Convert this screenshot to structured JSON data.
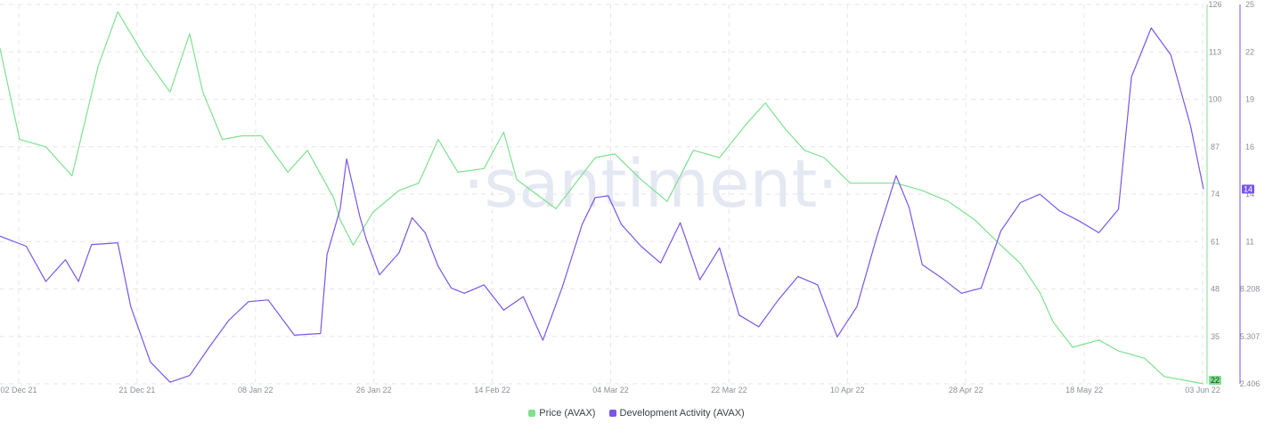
{
  "watermark": "·santiment·",
  "colors": {
    "price": "#7fe08f",
    "dev": "#7a55e6",
    "grid": "#e6e6e6",
    "axis_text": "#8a8f98"
  },
  "chart_data": {
    "type": "line",
    "x_ticks": [
      "02 Dec 21",
      "21 Dec 21",
      "08 Jan 22",
      "26 Jan 22",
      "14 Feb 22",
      "04 Mar 22",
      "22 Mar 22",
      "10 Apr 22",
      "28 Apr 22",
      "18 May 22",
      "03 Jun 22"
    ],
    "x_range": [
      "2021-12-01",
      "2022-06-03"
    ],
    "grid": true,
    "legend_position": "bottom",
    "y_axes": [
      {
        "side": "right",
        "series": "Price (AVAX)",
        "ticks": [
          "126",
          "113",
          "100",
          "87",
          "74",
          "61",
          "48",
          "35",
          "22"
        ],
        "range": [
          22,
          126
        ],
        "last_value_label": "22"
      },
      {
        "side": "right",
        "series": "Development Activity (AVAX)",
        "ticks": [
          "25",
          "22",
          "19",
          "16",
          "14",
          "11",
          "8.208",
          "5.307",
          "2.406"
        ],
        "range": [
          2.406,
          25
        ],
        "last_value_label": "14"
      }
    ],
    "series": [
      {
        "name": "Price (AVAX)",
        "x": [
          "2021-12-01",
          "2021-12-04",
          "2021-12-08",
          "2021-12-12",
          "2021-12-16",
          "2021-12-19",
          "2021-12-23",
          "2021-12-27",
          "2021-12-30",
          "2022-01-01",
          "2022-01-04",
          "2022-01-07",
          "2022-01-10",
          "2022-01-14",
          "2022-01-17",
          "2022-01-21",
          "2022-01-22",
          "2022-01-24",
          "2022-01-27",
          "2022-01-31",
          "2022-02-03",
          "2022-02-06",
          "2022-02-09",
          "2022-02-13",
          "2022-02-16",
          "2022-02-18",
          "2022-02-21",
          "2022-02-24",
          "2022-02-27",
          "2022-03-02",
          "2022-03-05",
          "2022-03-09",
          "2022-03-13",
          "2022-03-17",
          "2022-03-21",
          "2022-03-25",
          "2022-03-28",
          "2022-03-31",
          "2022-04-03",
          "2022-04-06",
          "2022-04-10",
          "2022-04-14",
          "2022-04-17",
          "2022-04-21",
          "2022-04-25",
          "2022-04-29",
          "2022-05-03",
          "2022-05-06",
          "2022-05-09",
          "2022-05-11",
          "2022-05-14",
          "2022-05-18",
          "2022-05-21",
          "2022-05-25",
          "2022-05-28",
          "2022-05-31",
          "2022-06-03"
        ],
        "values": [
          114,
          89,
          87,
          79,
          109,
          124,
          112,
          102,
          118,
          102,
          89,
          90,
          90,
          80,
          86,
          73,
          67,
          60,
          69,
          75,
          77,
          89,
          80,
          81,
          91,
          78,
          74,
          70,
          77,
          84,
          85,
          78,
          72,
          86,
          84,
          93,
          99,
          92,
          86,
          84,
          77,
          77,
          77,
          75,
          72,
          67,
          60,
          55,
          47,
          39,
          32,
          34,
          31,
          29,
          24,
          23,
          22
        ]
      },
      {
        "name": "Development Activity (AVAX)",
        "x": [
          "2021-12-01",
          "2021-12-05",
          "2021-12-08",
          "2021-12-11",
          "2021-12-13",
          "2021-12-15",
          "2021-12-19",
          "2021-12-21",
          "2021-12-24",
          "2021-12-27",
          "2021-12-30",
          "2022-01-02",
          "2022-01-05",
          "2022-01-08",
          "2022-01-11",
          "2022-01-15",
          "2022-01-19",
          "2022-01-20",
          "2022-01-22",
          "2022-01-23",
          "2022-01-25",
          "2022-01-26",
          "2022-01-28",
          "2022-01-31",
          "2022-02-02",
          "2022-02-04",
          "2022-02-06",
          "2022-02-08",
          "2022-02-10",
          "2022-02-13",
          "2022-02-16",
          "2022-02-19",
          "2022-02-22",
          "2022-02-25",
          "2022-02-28",
          "2022-03-02",
          "2022-03-04",
          "2022-03-06",
          "2022-03-09",
          "2022-03-12",
          "2022-03-15",
          "2022-03-18",
          "2022-03-21",
          "2022-03-24",
          "2022-03-27",
          "2022-03-30",
          "2022-04-02",
          "2022-04-05",
          "2022-04-08",
          "2022-04-11",
          "2022-04-14",
          "2022-04-17",
          "2022-04-19",
          "2022-04-21",
          "2022-04-24",
          "2022-04-27",
          "2022-04-30",
          "2022-05-03",
          "2022-05-06",
          "2022-05-09",
          "2022-05-12",
          "2022-05-15",
          "2022-05-18",
          "2022-05-21",
          "2022-05-23",
          "2022-05-26",
          "2022-05-29",
          "2022-06-01",
          "2022-06-03"
        ],
        "values": [
          11.2,
          10.6,
          8.5,
          9.8,
          8.5,
          10.7,
          10.8,
          7.0,
          3.7,
          2.5,
          2.9,
          4.6,
          6.2,
          7.3,
          7.4,
          5.3,
          5.4,
          10.1,
          12.8,
          15.8,
          12.4,
          11.0,
          8.9,
          10.2,
          12.3,
          11.4,
          9.4,
          8.1,
          7.8,
          8.3,
          6.8,
          7.6,
          5.0,
          8.2,
          11.9,
          13.5,
          13.6,
          11.9,
          10.6,
          9.6,
          12.0,
          8.6,
          10.5,
          6.5,
          5.8,
          7.4,
          8.8,
          8.3,
          5.2,
          7.0,
          11.1,
          14.8,
          12.9,
          9.5,
          8.7,
          7.8,
          8.1,
          11.5,
          13.2,
          13.7,
          12.7,
          12.1,
          11.4,
          12.8,
          20.7,
          23.6,
          22.0,
          17.8,
          14.0
        ]
      }
    ]
  }
}
